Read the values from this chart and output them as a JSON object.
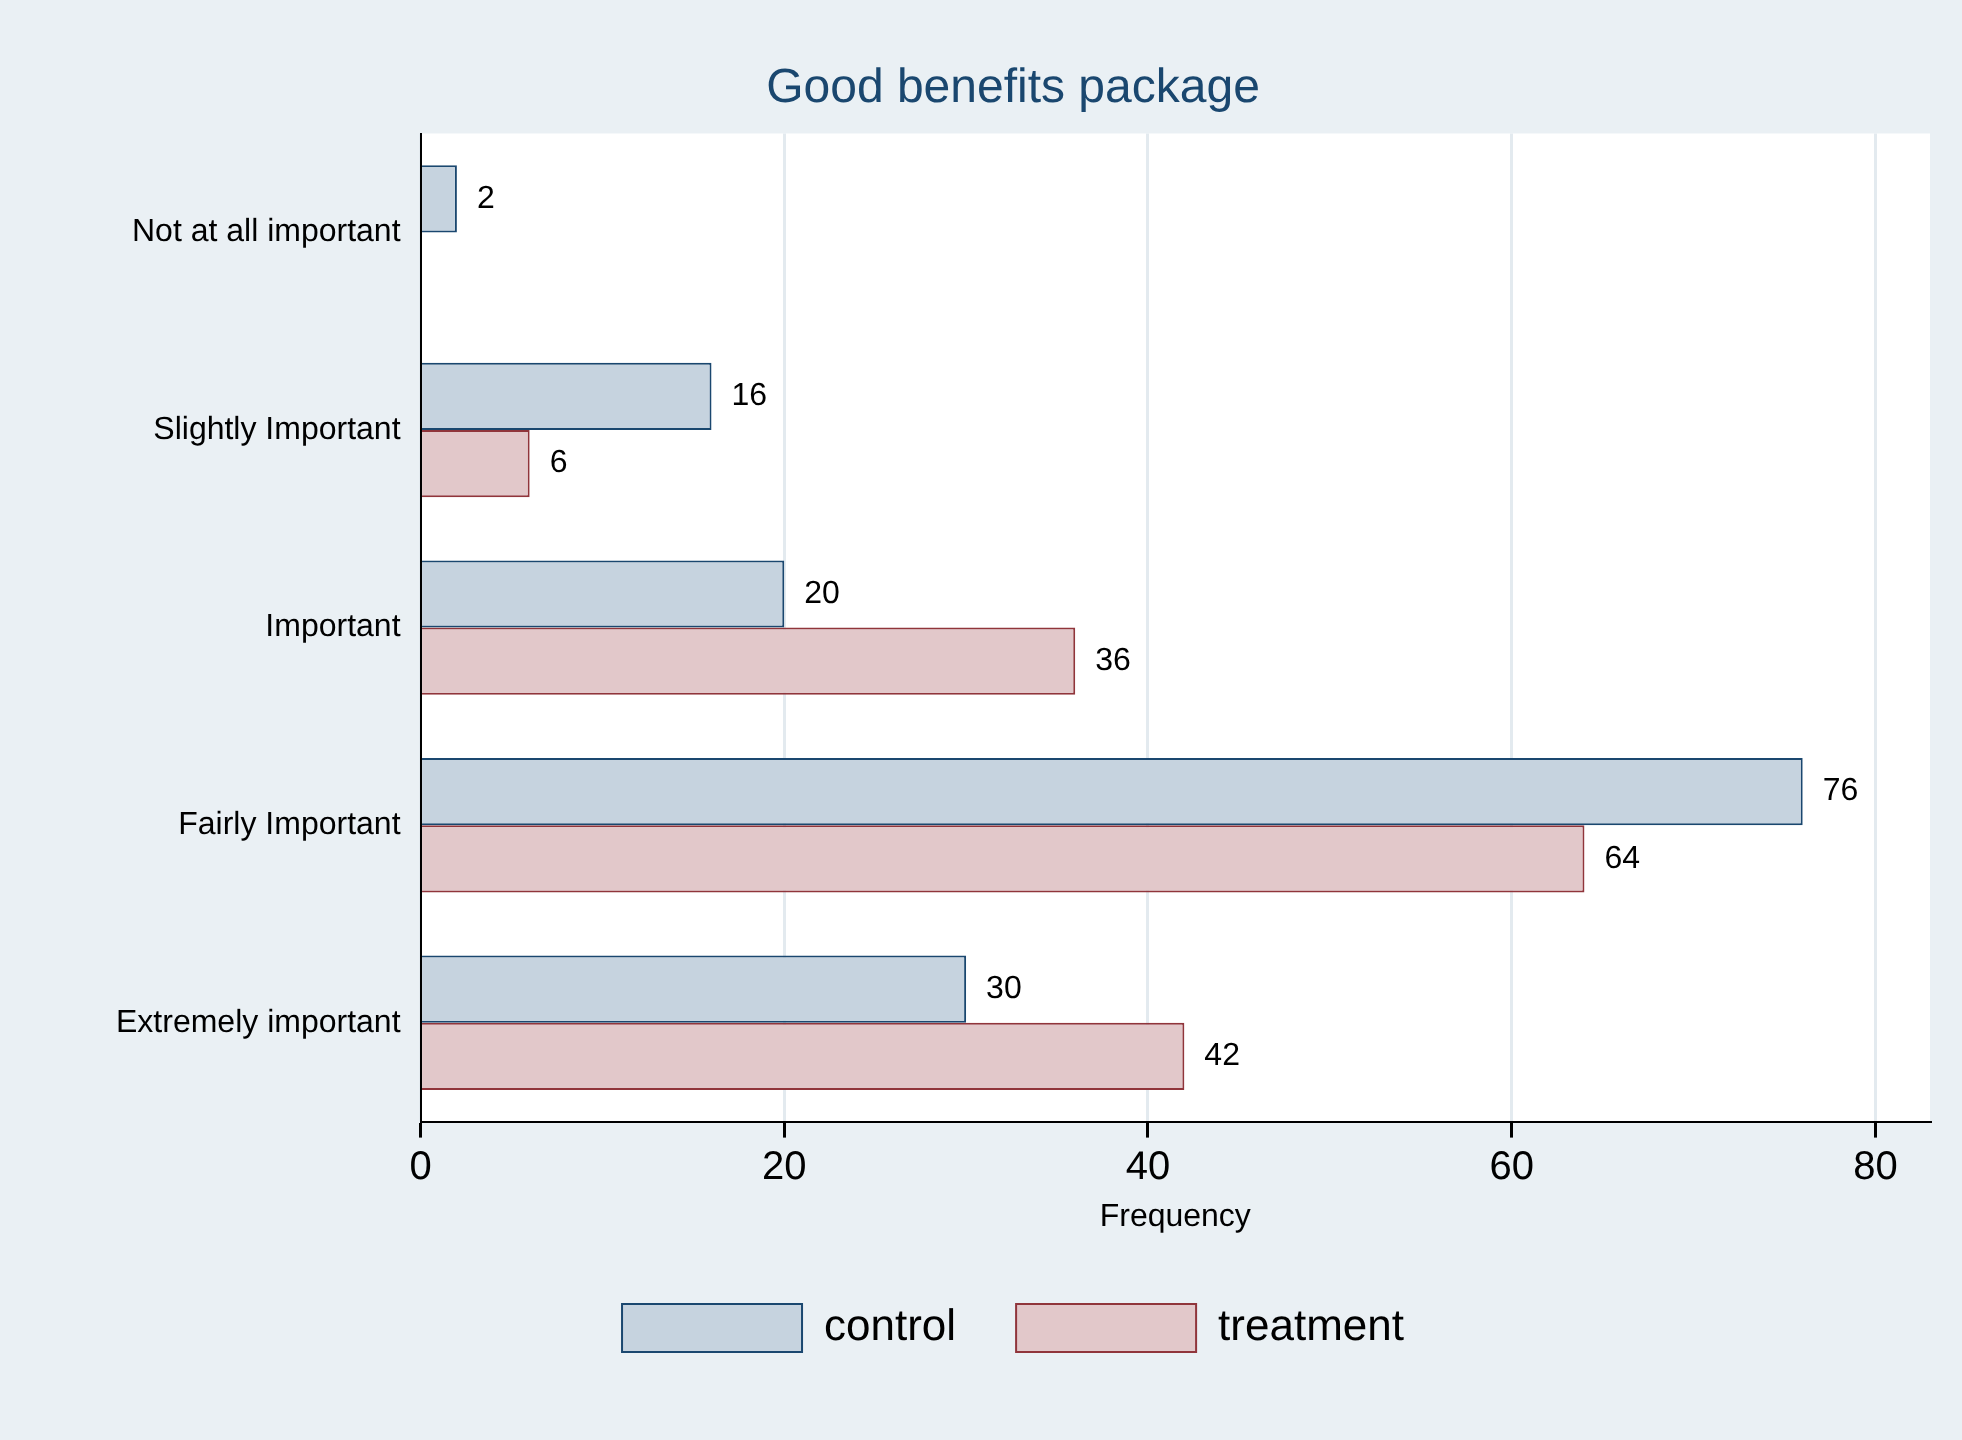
{
  "chart_data": {
    "type": "bar",
    "orientation": "horizontal",
    "title": "Good benefits package",
    "xlabel": "Frequency",
    "categories": [
      "Not at all important",
      "Slightly Important",
      "Important",
      "Fairly Important",
      "Extremely important"
    ],
    "series": [
      {
        "name": "control",
        "color": "#c6d3df",
        "values": [
          2,
          16,
          20,
          76,
          30
        ]
      },
      {
        "name": "treatment",
        "color": "#e2c8ca",
        "values": [
          null,
          6,
          36,
          64,
          42
        ]
      }
    ],
    "xlim": [
      0,
      83
    ],
    "xticks": [
      0,
      20,
      40,
      60,
      80
    ],
    "grid": "x",
    "legend": "bottom",
    "data_labels": true
  }
}
